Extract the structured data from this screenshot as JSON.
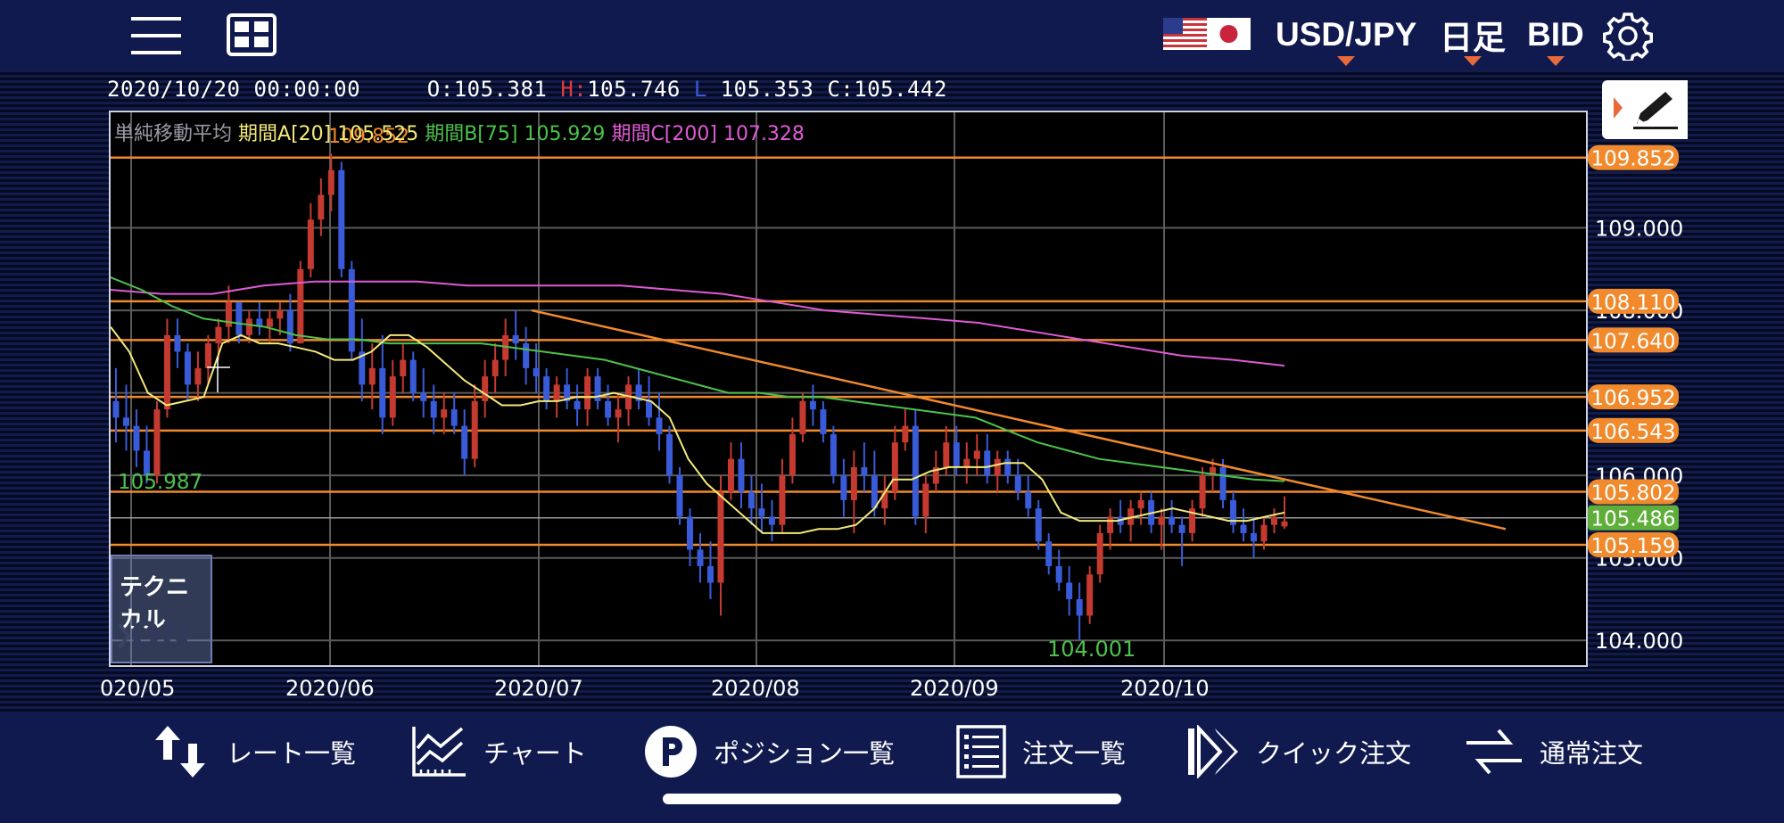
{
  "header": {
    "pair": "USD/JPY",
    "timeframe": "日足",
    "side": "BID",
    "icons": [
      "hamburger-icon",
      "layout-icon",
      "us-flag-icon",
      "jp-flag-icon",
      "gear-icon"
    ]
  },
  "ohlc": {
    "datetime": "2020/10/20 00:00:00",
    "open_label": "O:",
    "open": "105.381",
    "high_label": "H:",
    "high": "105.746",
    "low_label": "L",
    "low": "105.353",
    "close_label": "C:",
    "close": "105.442"
  },
  "ma_legend": {
    "name": "単純移動平均",
    "a": "期間A[20] 105.525",
    "b": "期間B[75] 105.929",
    "c": "期間C[200] 107.328"
  },
  "technical": {
    "title": "テクニカル",
    "state": "ON"
  },
  "colors": {
    "header_bg": "#101a4e",
    "bull": "#c43a30",
    "bear": "#3a5bd9",
    "ma_a": "#f4e97a",
    "ma_b": "#4cc24c",
    "ma_c": "#e05ad6",
    "hline": "#f08a2c",
    "price_tag": "#f08a2c",
    "current_tag": "#5fae3a"
  },
  "chart_data": {
    "type": "candlestick",
    "x_labels": [
      "020/05",
      "2020/06",
      "2020/07",
      "2020/08",
      "2020/09",
      "2020/10"
    ],
    "y_ticks": [
      "109.000",
      "108.000",
      "106.000",
      "105.000",
      "104.000"
    ],
    "ylim": [
      103.7,
      110.4
    ],
    "horizontal_lines": [
      109.852,
      108.11,
      107.64,
      106.952,
      106.543,
      105.802,
      105.159
    ],
    "price_tags": [
      "109.852",
      "108.110",
      "107.640",
      "106.952",
      "106.543",
      "105.802",
      "105.159"
    ],
    "current_price": "105.486",
    "current_price_value": 105.486,
    "high_marker": "109.852",
    "low_marker": "104.001",
    "annotation_left": "105.987",
    "trendline": {
      "from": [
        "2020/06/29",
        108.0
      ],
      "to": [
        "2020/11/13",
        105.35
      ]
    },
    "ma_a_values": [
      107.8,
      107.5,
      107.0,
      106.85,
      106.9,
      106.95,
      107.6,
      107.7,
      107.6,
      107.6,
      107.55,
      107.5,
      107.4,
      107.4,
      107.5,
      107.7,
      107.7,
      107.55,
      107.35,
      107.15,
      107.0,
      106.85,
      106.85,
      106.9,
      106.9,
      106.95,
      106.95,
      107.0,
      106.95,
      106.9,
      106.7,
      106.2,
      105.9,
      105.7,
      105.5,
      105.3,
      105.3,
      105.3,
      105.35,
      105.35,
      105.4,
      105.6,
      105.95,
      105.95,
      106.05,
      106.1,
      106.1,
      106.1,
      106.15,
      106.15,
      105.95,
      105.55,
      105.45,
      105.45,
      105.45,
      105.5,
      105.55,
      105.6,
      105.55,
      105.5,
      105.45,
      105.45,
      105.5,
      105.55
    ],
    "ma_b_values": [
      108.4,
      108.25,
      108.05,
      107.9,
      107.85,
      107.8,
      107.7,
      107.65,
      107.65,
      107.6,
      107.6,
      107.6,
      107.6,
      107.55,
      107.5,
      107.45,
      107.4,
      107.3,
      107.2,
      107.1,
      107.0,
      107.0,
      106.95,
      106.95,
      106.9,
      106.85,
      106.8,
      106.75,
      106.7,
      106.55,
      106.4,
      106.3,
      106.2,
      106.15,
      106.1,
      106.05,
      106.0,
      105.95,
      105.93
    ],
    "ma_c_values": [
      108.25,
      108.2,
      108.2,
      108.3,
      108.35,
      108.35,
      108.35,
      108.3,
      108.3,
      108.3,
      108.3,
      108.25,
      108.2,
      108.1,
      108.0,
      107.95,
      107.9,
      107.85,
      107.75,
      107.65,
      107.55,
      107.45,
      107.4,
      107.33
    ],
    "ohlc_sample": [
      [
        106.9,
        107.3,
        106.4,
        106.7
      ],
      [
        106.7,
        107.1,
        106.3,
        106.6
      ],
      [
        106.6,
        106.8,
        106.1,
        106.3
      ],
      [
        106.3,
        106.6,
        105.9,
        106.0
      ],
      [
        106.0,
        106.9,
        105.9,
        106.8
      ],
      [
        106.8,
        107.9,
        106.7,
        107.7
      ],
      [
        107.7,
        107.9,
        107.3,
        107.5
      ],
      [
        107.5,
        107.6,
        106.9,
        107.1
      ],
      [
        107.1,
        107.5,
        106.9,
        107.3
      ],
      [
        107.3,
        107.7,
        107.1,
        107.6
      ],
      [
        107.6,
        107.9,
        107.4,
        107.8
      ],
      [
        107.8,
        108.3,
        107.6,
        108.1
      ],
      [
        108.1,
        108.0,
        107.6,
        107.7
      ],
      [
        107.7,
        108.0,
        107.6,
        107.9
      ],
      [
        107.9,
        108.1,
        107.7,
        107.8
      ],
      [
        107.8,
        108.0,
        107.6,
        107.9
      ],
      [
        107.9,
        108.1,
        107.7,
        108.0
      ],
      [
        108.0,
        108.2,
        107.5,
        107.6
      ],
      [
        107.6,
        108.6,
        107.6,
        108.5
      ],
      [
        108.5,
        109.3,
        108.4,
        109.1
      ],
      [
        109.1,
        109.6,
        108.9,
        109.4
      ],
      [
        109.4,
        109.9,
        109.2,
        109.7
      ],
      [
        109.7,
        109.8,
        108.4,
        108.5
      ],
      [
        108.5,
        108.6,
        107.4,
        107.5
      ],
      [
        107.5,
        107.9,
        106.9,
        107.1
      ],
      [
        107.1,
        107.6,
        106.8,
        107.3
      ],
      [
        107.3,
        107.7,
        106.5,
        106.7
      ],
      [
        106.7,
        107.4,
        106.6,
        107.2
      ],
      [
        107.2,
        107.6,
        107.0,
        107.4
      ],
      [
        107.4,
        107.5,
        106.9,
        107.0
      ],
      [
        107.0,
        107.3,
        106.7,
        106.9
      ],
      [
        106.9,
        107.1,
        106.5,
        106.7
      ],
      [
        106.7,
        107.0,
        106.5,
        106.8
      ],
      [
        106.8,
        107.0,
        106.5,
        106.6
      ],
      [
        106.6,
        106.8,
        106.0,
        106.2
      ],
      [
        106.2,
        107.1,
        106.1,
        106.9
      ],
      [
        106.9,
        107.4,
        106.7,
        107.2
      ],
      [
        107.2,
        107.6,
        107.0,
        107.4
      ],
      [
        107.4,
        107.9,
        107.2,
        107.7
      ],
      [
        107.7,
        108.0,
        107.4,
        107.6
      ],
      [
        107.6,
        107.8,
        107.1,
        107.3
      ],
      [
        107.3,
        107.6,
        107.0,
        107.2
      ],
      [
        107.2,
        107.3,
        106.8,
        106.9
      ],
      [
        106.9,
        107.2,
        106.7,
        107.1
      ],
      [
        107.1,
        107.3,
        106.8,
        106.9
      ],
      [
        106.9,
        107.1,
        106.6,
        106.8
      ],
      [
        106.8,
        107.3,
        106.6,
        107.2
      ],
      [
        107.2,
        107.3,
        106.8,
        106.9
      ],
      [
        106.9,
        107.1,
        106.6,
        106.7
      ],
      [
        106.7,
        107.0,
        106.4,
        106.8
      ],
      [
        106.8,
        107.2,
        106.6,
        107.1
      ],
      [
        107.1,
        107.3,
        106.8,
        106.9
      ],
      [
        106.9,
        107.2,
        106.6,
        106.7
      ],
      [
        106.7,
        107.0,
        106.3,
        106.5
      ],
      [
        106.5,
        106.6,
        105.9,
        106.0
      ],
      [
        106.0,
        106.1,
        105.4,
        105.5
      ],
      [
        105.5,
        105.6,
        104.9,
        105.1
      ],
      [
        105.1,
        105.3,
        104.7,
        104.9
      ],
      [
        104.9,
        105.2,
        104.5,
        104.7
      ],
      [
        104.7,
        106.0,
        104.3,
        105.8
      ],
      [
        105.8,
        106.4,
        105.7,
        106.2
      ],
      [
        106.2,
        106.4,
        105.6,
        105.8
      ],
      [
        105.8,
        106.0,
        105.4,
        105.6
      ],
      [
        105.6,
        105.9,
        105.3,
        105.5
      ],
      [
        105.5,
        105.7,
        105.2,
        105.4
      ],
      [
        105.4,
        106.2,
        105.3,
        106.0
      ],
      [
        106.0,
        106.7,
        105.9,
        106.5
      ],
      [
        106.5,
        107.0,
        106.4,
        106.9
      ],
      [
        106.9,
        107.1,
        106.6,
        106.8
      ],
      [
        106.8,
        106.9,
        106.4,
        106.5
      ],
      [
        106.5,
        106.6,
        105.9,
        106.0
      ],
      [
        106.0,
        106.2,
        105.5,
        105.7
      ],
      [
        105.7,
        106.3,
        105.3,
        106.1
      ],
      [
        106.1,
        106.4,
        105.8,
        106.0
      ],
      [
        106.0,
        106.3,
        105.5,
        105.6
      ],
      [
        105.6,
        106.0,
        105.4,
        105.8
      ],
      [
        105.8,
        106.6,
        105.7,
        106.4
      ],
      [
        106.4,
        106.8,
        106.3,
        106.6
      ],
      [
        106.6,
        106.8,
        105.4,
        105.5
      ],
      [
        105.5,
        106.0,
        105.3,
        105.9
      ],
      [
        105.9,
        106.3,
        105.8,
        106.1
      ],
      [
        106.1,
        106.6,
        106.0,
        106.4
      ],
      [
        106.4,
        106.6,
        106.0,
        106.1
      ],
      [
        106.1,
        106.4,
        105.9,
        106.2
      ],
      [
        106.2,
        106.5,
        106.0,
        106.3
      ],
      [
        106.3,
        106.5,
        105.9,
        106.0
      ],
      [
        106.0,
        106.3,
        105.8,
        106.2
      ],
      [
        106.2,
        106.3,
        105.9,
        106.0
      ],
      [
        106.0,
        106.2,
        105.7,
        105.8
      ],
      [
        105.8,
        106.0,
        105.5,
        105.6
      ],
      [
        105.6,
        105.7,
        105.1,
        105.2
      ],
      [
        105.2,
        105.3,
        104.8,
        104.9
      ],
      [
        104.9,
        105.1,
        104.6,
        104.7
      ],
      [
        104.7,
        104.9,
        104.3,
        104.5
      ],
      [
        104.5,
        104.7,
        104.0,
        104.3
      ],
      [
        104.3,
        104.9,
        104.2,
        104.8
      ],
      [
        104.8,
        105.4,
        104.7,
        105.3
      ],
      [
        105.3,
        105.6,
        105.1,
        105.5
      ],
      [
        105.5,
        105.7,
        105.3,
        105.4
      ],
      [
        105.4,
        105.7,
        105.2,
        105.6
      ],
      [
        105.6,
        105.8,
        105.4,
        105.7
      ],
      [
        105.7,
        105.8,
        105.3,
        105.4
      ],
      [
        105.4,
        105.6,
        105.1,
        105.5
      ],
      [
        105.5,
        105.7,
        105.3,
        105.4
      ],
      [
        105.4,
        105.5,
        104.9,
        105.3
      ],
      [
        105.3,
        105.7,
        105.2,
        105.6
      ],
      [
        105.6,
        106.1,
        105.5,
        106.0
      ],
      [
        106.0,
        106.2,
        105.8,
        106.1
      ],
      [
        106.1,
        106.2,
        105.6,
        105.7
      ],
      [
        105.7,
        105.8,
        105.3,
        105.4
      ],
      [
        105.4,
        105.6,
        105.2,
        105.3
      ],
      [
        105.3,
        105.5,
        105.0,
        105.2
      ],
      [
        105.2,
        105.5,
        105.1,
        105.4
      ],
      [
        105.4,
        105.6,
        105.3,
        105.5
      ],
      [
        105.381,
        105.746,
        105.353,
        105.442
      ]
    ]
  },
  "nav": {
    "items": [
      {
        "label": "レート一覧",
        "icon": "rates-swap-icon"
      },
      {
        "label": "チャート",
        "icon": "chart-icon"
      },
      {
        "label": "ポジション一覧",
        "icon": "position-p-icon"
      },
      {
        "label": "注文一覧",
        "icon": "order-list-icon"
      },
      {
        "label": "クイック注文",
        "icon": "quick-order-icon"
      },
      {
        "label": "通常注文",
        "icon": "normal-order-icon"
      }
    ]
  }
}
